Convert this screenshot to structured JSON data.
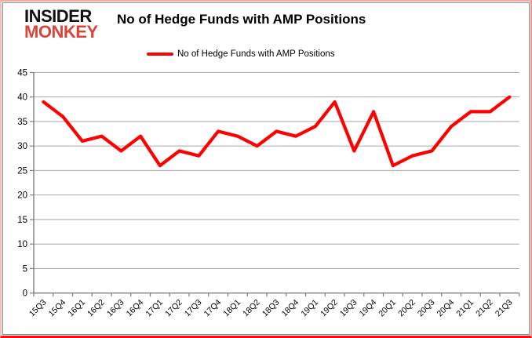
{
  "branding": {
    "line1": "INSIDER",
    "line2": "MONKEY",
    "line1_color": "#111111",
    "line2_color": "#d9453a"
  },
  "header": {
    "title": "No of Hedge Funds with AMP Positions"
  },
  "legend": {
    "label": "No of Hedge Funds with AMP Positions",
    "color": "#ff0000"
  },
  "colors": {
    "line": "#ff0000",
    "gridline": "#a6a6a6",
    "axis": "#7f7f7f",
    "tick_text": "#000000",
    "background": "#ffffff",
    "outer_border_bottom": "#fb0f06",
    "outer_border_sides": "#f3aba4",
    "inner_frame": "#8c8c8c"
  },
  "chart_data": {
    "type": "line",
    "title": "No of Hedge Funds with AMP Positions",
    "xlabel": "",
    "ylabel": "",
    "categories": [
      "15Q3",
      "15Q4",
      "16Q1",
      "16Q2",
      "16Q3",
      "16Q4",
      "17Q1",
      "17Q2",
      "17Q3",
      "17Q4",
      "18Q1",
      "18Q2",
      "18Q3",
      "18Q4",
      "19Q1",
      "19Q2",
      "19Q3",
      "19Q4",
      "20Q1",
      "20Q2",
      "20Q3",
      "20Q4",
      "21Q1",
      "21Q2",
      "21Q3"
    ],
    "series": [
      {
        "name": "No of Hedge Funds with AMP Positions",
        "color": "#ff0000",
        "values": [
          39,
          36,
          31,
          32,
          29,
          32,
          26,
          29,
          28,
          33,
          32,
          30,
          33,
          32,
          34,
          39,
          29,
          37,
          26,
          28,
          29,
          34,
          37,
          37,
          40
        ]
      }
    ],
    "ylim": [
      0,
      45
    ],
    "ytick_step": 5,
    "y_ticks": [
      0,
      5,
      10,
      15,
      20,
      25,
      30,
      35,
      40,
      45
    ],
    "grid": true,
    "legend_position": "top"
  }
}
